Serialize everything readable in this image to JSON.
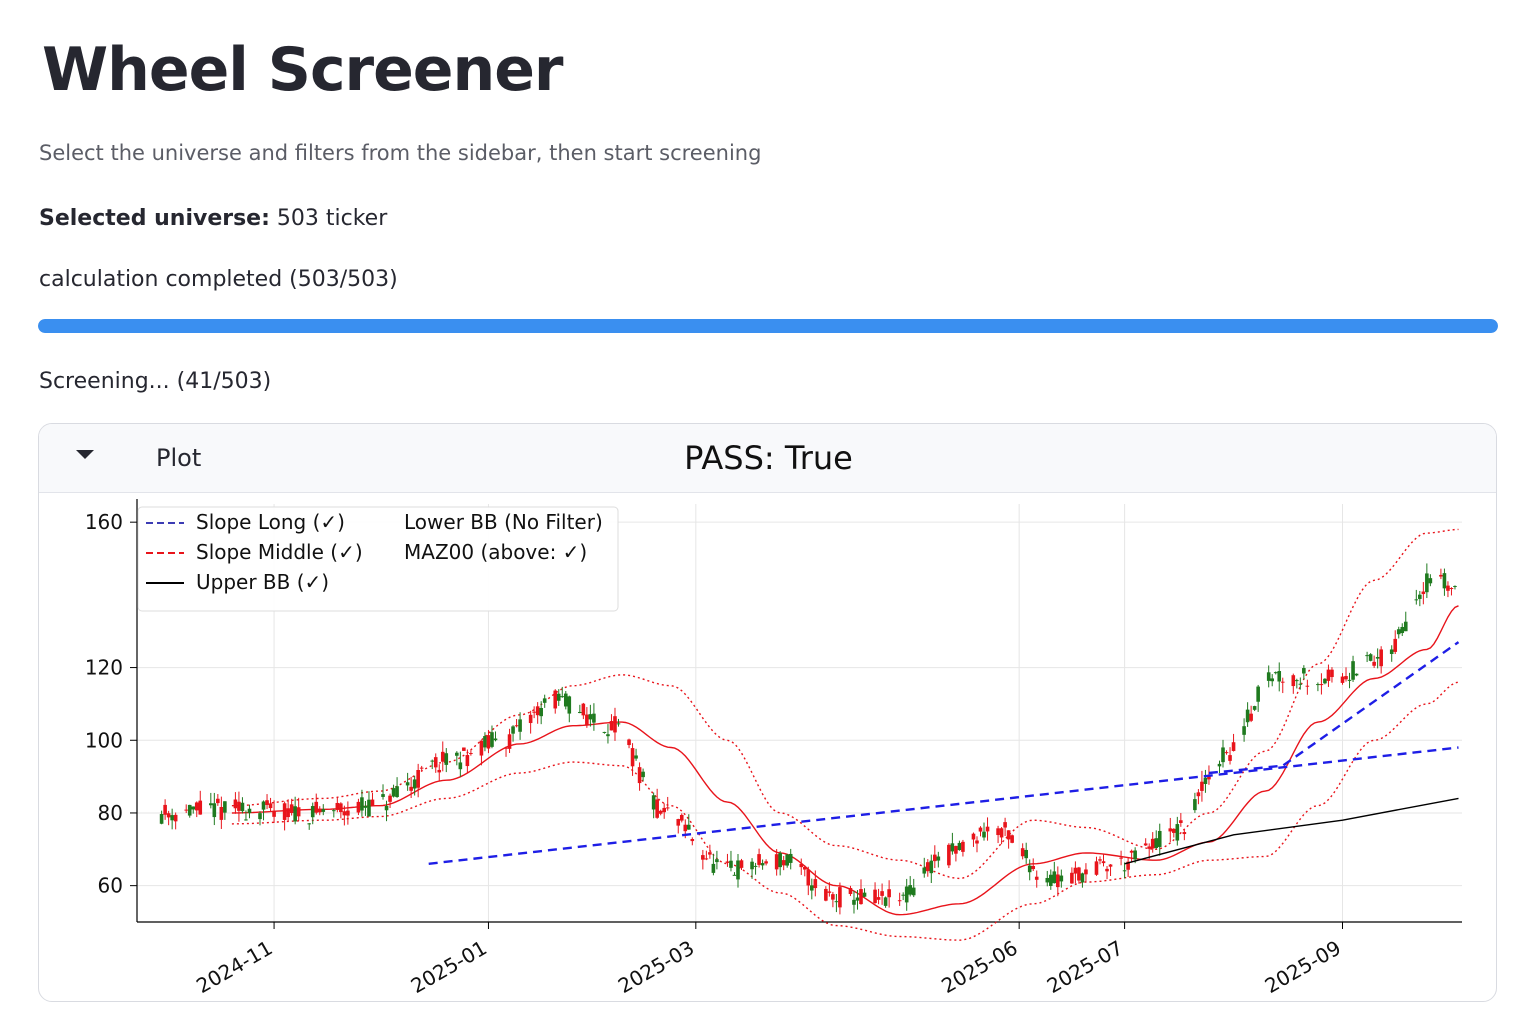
{
  "page": {
    "title": "Wheel Screener",
    "subtitle": "Select the universe and filters from the sidebar, then start screening",
    "universe_label": "Selected universe:",
    "universe_value": "503 ticker",
    "calc_status": "calculation completed (503/503)",
    "progress_fraction": 1.0,
    "screening_status": "Screening... (41/503)"
  },
  "colors": {
    "progress": "#3a8ff0",
    "up_candle": "#1f7a1f",
    "down_candle": "#e8141b",
    "slope_line": "#1e1ee6",
    "band": "#e8141b",
    "ma_line": "#000000"
  },
  "expander": {
    "label": "Plot",
    "caret_icon": "caret-down-icon"
  },
  "chart_data": {
    "type": "candlestick",
    "title": "PASS: True",
    "ylim": [
      50,
      165
    ],
    "yticks": [
      60,
      80,
      100,
      120,
      160
    ],
    "ytick_labels": [
      "60",
      "80",
      "100",
      "120",
      "160"
    ],
    "xticks": [
      "2024-11",
      "2025-01",
      "2025-03",
      "2025-06",
      "2025-07",
      "2025-09"
    ],
    "x_range": [
      "2024-09-23",
      "2025-10-05"
    ],
    "grid": true,
    "legend_position": "upper-left",
    "legend": [
      {
        "label": "Slope Long (✓)",
        "style": "dashed",
        "color": "#3c3cb4"
      },
      {
        "label": "Slope Middle (✓)",
        "style": "dashed",
        "color": "#e8141b"
      },
      {
        "label": "Upper BB (✓)",
        "style": "solid",
        "color": "#000000"
      },
      {
        "label": "Lower BB (No Filter)",
        "style": "none",
        "color": "#000000"
      },
      {
        "label": "MAZ00 (above: ✓)",
        "style": "none",
        "color": "#000000"
      }
    ],
    "close_anchors": [
      [
        "2024-09-28",
        80
      ],
      [
        "2024-10-20",
        81
      ],
      [
        "2024-11-10",
        80
      ],
      [
        "2024-11-30",
        82
      ],
      [
        "2024-12-20",
        94
      ],
      [
        "2025-01-05",
        100
      ],
      [
        "2025-01-20",
        111
      ],
      [
        "2025-02-05",
        104
      ],
      [
        "2025-02-20",
        80
      ],
      [
        "2025-03-10",
        64
      ],
      [
        "2025-03-25",
        67
      ],
      [
        "2025-04-10",
        57
      ],
      [
        "2025-04-28",
        56
      ],
      [
        "2025-05-10",
        68
      ],
      [
        "2025-05-25",
        76
      ],
      [
        "2025-06-10",
        62
      ],
      [
        "2025-06-30",
        66
      ],
      [
        "2025-07-15",
        74
      ],
      [
        "2025-07-30",
        96
      ],
      [
        "2025-08-12",
        118
      ],
      [
        "2025-08-28",
        117
      ],
      [
        "2025-09-12",
        122
      ],
      [
        "2025-09-26",
        144
      ],
      [
        "2025-10-04",
        142
      ]
    ],
    "middle_band": [
      [
        "2024-10-20",
        80
      ],
      [
        "2024-11-15",
        81
      ],
      [
        "2024-12-01",
        82
      ],
      [
        "2024-12-20",
        89
      ],
      [
        "2025-01-10",
        99
      ],
      [
        "2025-01-25",
        104
      ],
      [
        "2025-02-08",
        105
      ],
      [
        "2025-02-22",
        98
      ],
      [
        "2025-03-10",
        83
      ],
      [
        "2025-03-25",
        69
      ],
      [
        "2025-04-10",
        60
      ],
      [
        "2025-04-28",
        52
      ],
      [
        "2025-05-15",
        55
      ],
      [
        "2025-06-05",
        66
      ],
      [
        "2025-06-20",
        69
      ],
      [
        "2025-07-10",
        67
      ],
      [
        "2025-07-25",
        72
      ],
      [
        "2025-08-10",
        86
      ],
      [
        "2025-08-25",
        105
      ],
      [
        "2025-09-10",
        117
      ],
      [
        "2025-09-25",
        125
      ],
      [
        "2025-10-04",
        137
      ]
    ],
    "upper_band": [
      [
        "2024-10-20",
        82
      ],
      [
        "2024-11-15",
        84
      ],
      [
        "2024-12-01",
        86
      ],
      [
        "2024-12-20",
        94
      ],
      [
        "2025-01-10",
        107
      ],
      [
        "2025-01-25",
        115
      ],
      [
        "2025-02-08",
        118
      ],
      [
        "2025-02-22",
        115
      ],
      [
        "2025-03-10",
        100
      ],
      [
        "2025-03-25",
        80
      ],
      [
        "2025-04-10",
        71
      ],
      [
        "2025-04-28",
        67
      ],
      [
        "2025-05-15",
        62
      ],
      [
        "2025-06-05",
        78
      ],
      [
        "2025-06-20",
        76
      ],
      [
        "2025-07-10",
        70
      ],
      [
        "2025-07-25",
        80
      ],
      [
        "2025-08-10",
        97
      ],
      [
        "2025-08-25",
        121
      ],
      [
        "2025-09-10",
        144
      ],
      [
        "2025-09-25",
        157
      ],
      [
        "2025-10-04",
        158
      ]
    ],
    "lower_band": [
      [
        "2024-10-20",
        77
      ],
      [
        "2024-11-15",
        78
      ],
      [
        "2024-12-01",
        79
      ],
      [
        "2024-12-20",
        84
      ],
      [
        "2025-01-10",
        91
      ],
      [
        "2025-01-25",
        94
      ],
      [
        "2025-02-08",
        93
      ],
      [
        "2025-02-22",
        82
      ],
      [
        "2025-03-10",
        66
      ],
      [
        "2025-03-25",
        58
      ],
      [
        "2025-04-10",
        49
      ],
      [
        "2025-04-28",
        46
      ],
      [
        "2025-05-15",
        45
      ],
      [
        "2025-06-05",
        55
      ],
      [
        "2025-06-20",
        61
      ],
      [
        "2025-07-10",
        63
      ],
      [
        "2025-07-25",
        67
      ],
      [
        "2025-08-10",
        68
      ],
      [
        "2025-08-25",
        82
      ],
      [
        "2025-09-10",
        100
      ],
      [
        "2025-09-25",
        110
      ],
      [
        "2025-10-04",
        116
      ]
    ],
    "slope_long": [
      [
        "2024-12-15",
        66
      ],
      [
        "2025-10-04",
        98
      ]
    ],
    "slope_middle": [
      [
        "2025-07-25",
        91
      ],
      [
        "2025-08-15",
        93
      ],
      [
        "2025-10-04",
        127
      ]
    ],
    "ma_line": [
      [
        "2025-07-01",
        66
      ],
      [
        "2025-08-01",
        74
      ],
      [
        "2025-09-01",
        78
      ],
      [
        "2025-10-04",
        84
      ]
    ]
  }
}
